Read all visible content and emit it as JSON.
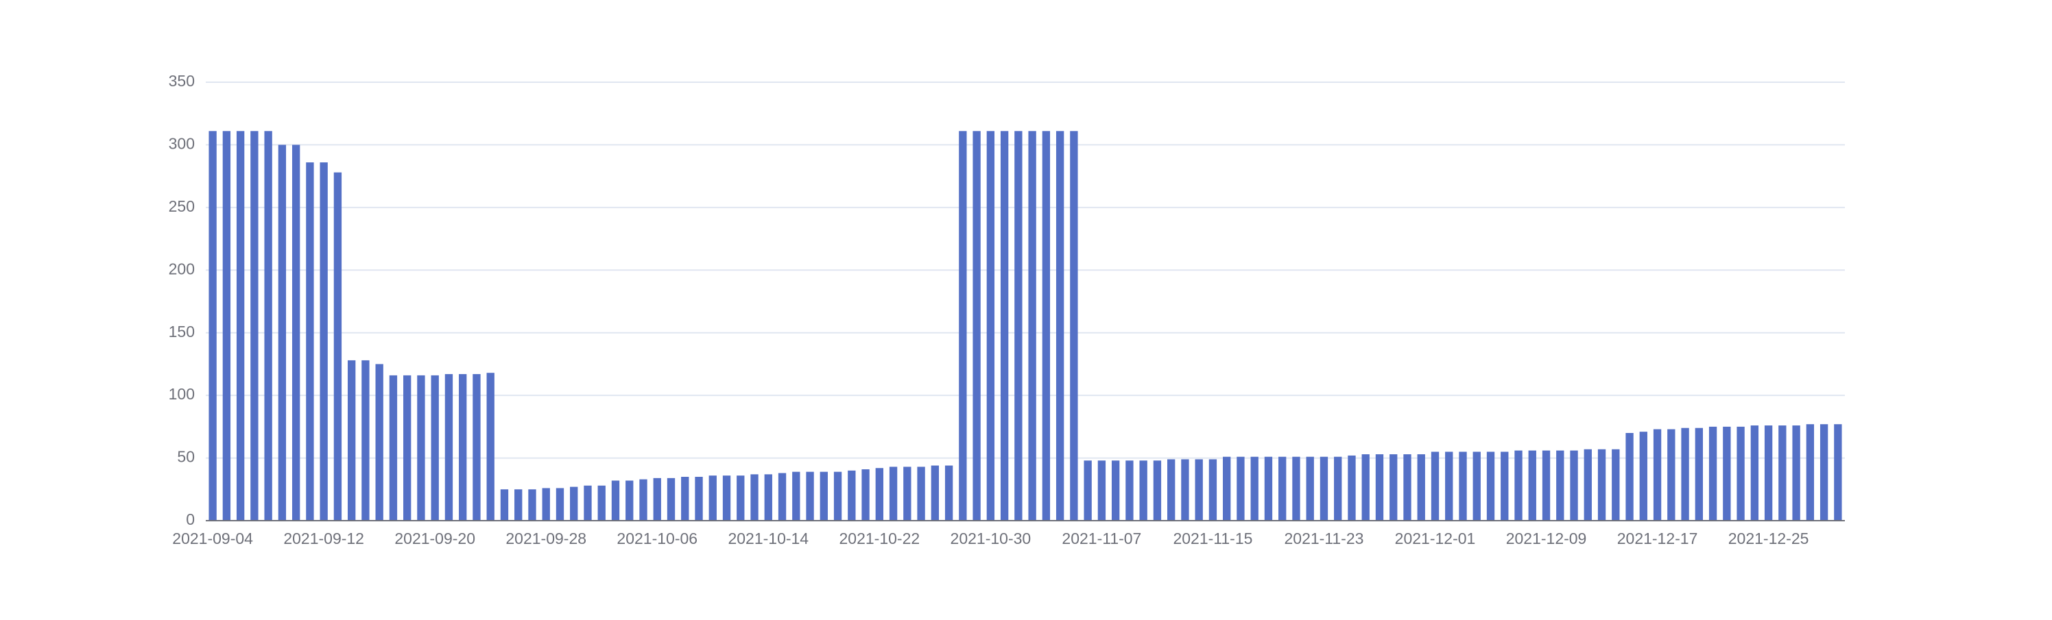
{
  "chart_data": {
    "type": "bar",
    "categories": [
      "2021-09-04",
      null,
      null,
      null,
      null,
      null,
      null,
      null,
      "2021-09-12",
      null,
      null,
      null,
      null,
      null,
      null,
      null,
      "2021-09-20",
      null,
      null,
      null,
      null,
      null,
      null,
      null,
      "2021-09-28",
      null,
      null,
      null,
      null,
      null,
      null,
      null,
      "2021-10-06",
      null,
      null,
      null,
      null,
      null,
      null,
      null,
      "2021-10-14",
      null,
      null,
      null,
      null,
      null,
      null,
      null,
      "2021-10-22",
      null,
      null,
      null,
      null,
      null,
      null,
      null,
      "2021-10-30",
      null,
      null,
      null,
      null,
      null,
      null,
      null,
      "2021-11-07",
      null,
      null,
      null,
      null,
      null,
      null,
      null,
      "2021-11-15",
      null,
      null,
      null,
      null,
      null,
      null,
      null,
      "2021-11-23",
      null,
      null,
      null,
      null,
      null,
      null,
      null,
      "2021-12-01",
      null,
      null,
      null,
      null,
      null,
      null,
      null,
      "2021-12-09",
      null,
      null,
      null,
      null,
      null,
      null,
      null,
      "2021-12-17",
      null,
      null,
      null,
      null,
      null,
      null,
      null,
      "2021-12-25",
      null,
      null,
      null,
      null,
      null
    ],
    "values": [
      311,
      311,
      311,
      311,
      311,
      300,
      300,
      286,
      286,
      278,
      128,
      128,
      125,
      116,
      116,
      116,
      116,
      117,
      117,
      117,
      118,
      25,
      25,
      25,
      26,
      26,
      27,
      28,
      28,
      32,
      32,
      33,
      34,
      34,
      35,
      35,
      36,
      36,
      36,
      37,
      37,
      38,
      39,
      39,
      39,
      39,
      40,
      41,
      42,
      43,
      43,
      43,
      44,
      44,
      311,
      311,
      311,
      311,
      311,
      311,
      311,
      311,
      311,
      48,
      48,
      48,
      48,
      48,
      48,
      49,
      49,
      49,
      49,
      51,
      51,
      51,
      51,
      51,
      51,
      51,
      51,
      51,
      52,
      53,
      53,
      53,
      53,
      53,
      55,
      55,
      55,
      55,
      55,
      55,
      56,
      56,
      56,
      56,
      56,
      57,
      57,
      57,
      70,
      71,
      73,
      73,
      74,
      74,
      75,
      75,
      75,
      76,
      76,
      76,
      76,
      77,
      77,
      77
    ],
    "color": "#5470c6",
    "ylim": [
      0,
      350
    ],
    "yticks": [
      0,
      50,
      100,
      150,
      200,
      250,
      300,
      350
    ],
    "grid": true
  }
}
